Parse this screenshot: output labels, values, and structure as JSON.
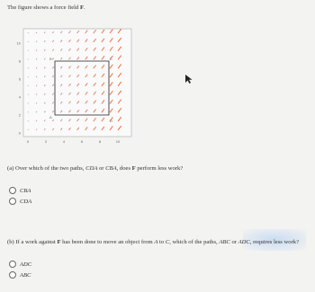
{
  "intro": [
    "The figure shows a force field ",
    "F",
    "."
  ],
  "figure": {
    "xticks": [
      0,
      2,
      4,
      6,
      8,
      10
    ],
    "yticks": [
      0,
      2,
      4,
      6,
      8,
      10
    ],
    "points": [
      "A",
      "B",
      "C",
      "D"
    ]
  },
  "part_a": {
    "question": [
      "(a) Over which of the two paths, ",
      "CDA",
      " or ",
      "CBA",
      ", does ",
      "F",
      " perform less work?"
    ],
    "options": [
      "CBA",
      "CDA"
    ]
  },
  "part_b": {
    "question": [
      "(b) If a work against ",
      "F",
      " has been done to move an object from ",
      "A",
      " to ",
      "C",
      ", which of the paths, ",
      "ABC",
      " or ",
      "ADC",
      ", requires less work?"
    ],
    "options": [
      "ADC",
      "ABC"
    ]
  }
}
